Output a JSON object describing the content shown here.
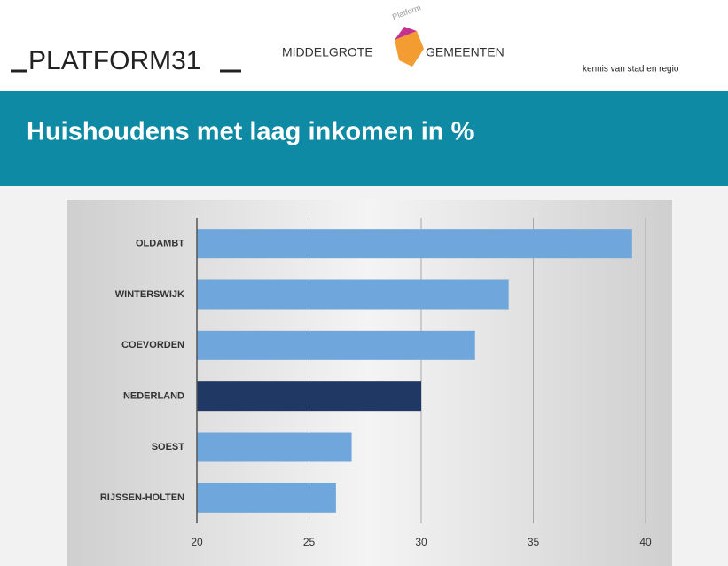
{
  "header": {
    "brand": "PLATFORM31",
    "partner_left": "MIDDELGROTE",
    "partner_right": "GEMEENTEN",
    "partner_arc": "Platform",
    "tagline": "kennis van stad en regio"
  },
  "chart_data": {
    "type": "bar",
    "orientation": "horizontal",
    "title": "Huishoudens met laag inkomen in %",
    "categories": [
      "OLDAMBT",
      "WINTERSWIJK",
      "COEVORDEN",
      "NEDERLAND",
      "SOEST",
      "RIJSSEN-HOLTEN"
    ],
    "values": [
      39.4,
      33.9,
      32.4,
      30.0,
      26.9,
      26.2
    ],
    "colors": [
      "#6fa6dc",
      "#6fa6dc",
      "#6fa6dc",
      "#1f3864",
      "#6fa6dc",
      "#6fa6dc"
    ],
    "xlim": [
      20,
      40
    ],
    "xticks": [
      20,
      25,
      30,
      35,
      40
    ],
    "grid": true
  }
}
